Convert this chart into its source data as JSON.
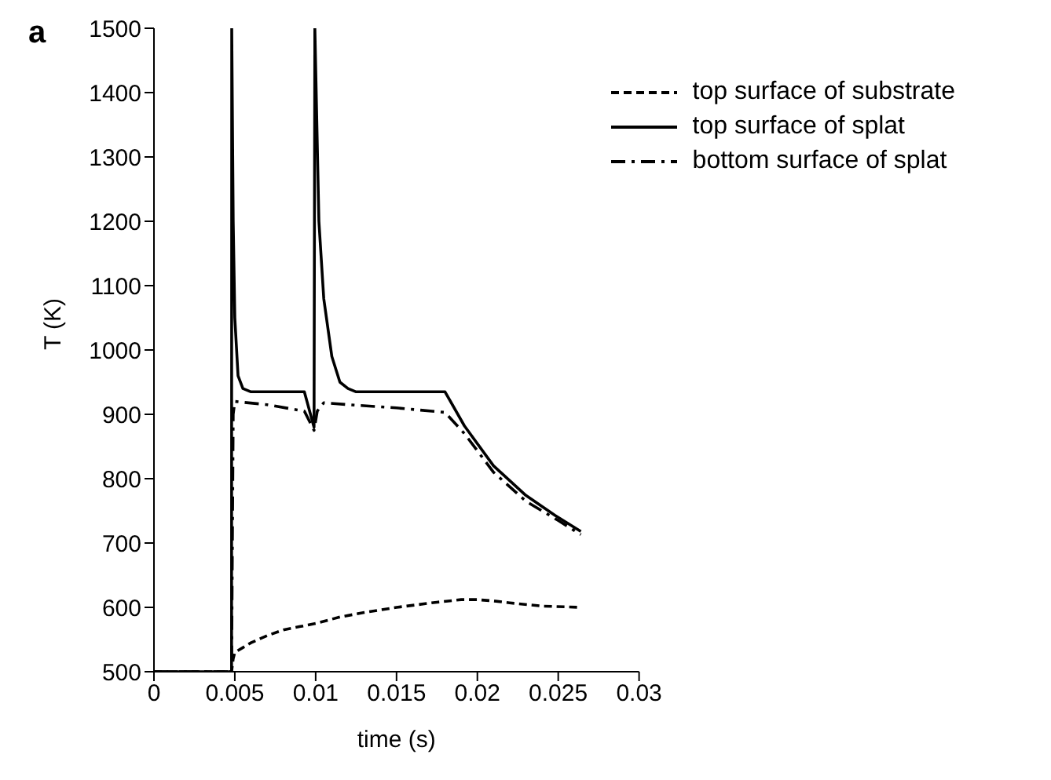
{
  "chart_data": {
    "type": "line",
    "xlabel": "time (s)",
    "ylabel": "T (K)",
    "annotations": [
      "a"
    ],
    "xlim": [
      0,
      0.03
    ],
    "xticks": [
      0,
      0.005,
      0.01,
      0.015,
      0.02,
      0.025,
      0.03
    ],
    "ylim": [
      500,
      1500
    ],
    "yticks": [
      500,
      600,
      700,
      800,
      900,
      1000,
      1100,
      1200,
      1300,
      1400,
      1500
    ],
    "legend": "top right",
    "marker": "none",
    "series": [
      {
        "name": "top surface of substrate",
        "color": "#000000",
        "line_style": "dashed",
        "x": [
          0,
          0.0048,
          0.0049,
          0.005,
          0.006,
          0.007,
          0.008,
          0.009,
          0.01,
          0.0115,
          0.013,
          0.015,
          0.0175,
          0.019,
          0.02,
          0.021,
          0.022,
          0.024,
          0.0264
        ],
        "values": [
          500,
          500,
          520,
          530,
          545,
          556,
          565,
          570,
          575,
          585,
          592,
          600,
          608,
          612,
          612,
          610,
          607,
          602,
          600
        ]
      },
      {
        "name": "top surface of splat",
        "color": "#000000",
        "line_style": "solid",
        "x": [
          0,
          0.0048,
          0.00481,
          0.0049,
          0.005,
          0.0052,
          0.0055,
          0.006,
          0.0093,
          0.0099,
          0.00995,
          0.0102,
          0.0105,
          0.011,
          0.0115,
          0.012,
          0.0125,
          0.018,
          0.0192,
          0.021,
          0.023,
          0.0248,
          0.0264
        ],
        "values": [
          500,
          500,
          1500,
          1200,
          1050,
          960,
          940,
          935,
          935,
          880,
          1500,
          1200,
          1080,
          990,
          950,
          940,
          935,
          935,
          882,
          820,
          774,
          743,
          718
        ]
      },
      {
        "name": "bottom surface of splat",
        "color": "#000000",
        "line_style": "dashdot",
        "x": [
          0,
          0.0048,
          0.00485,
          0.0049,
          0.005,
          0.007,
          0.0093,
          0.0099,
          0.0101,
          0.0105,
          0.012,
          0.015,
          0.018,
          0.0192,
          0.021,
          0.023,
          0.025,
          0.0264
        ],
        "values": [
          500,
          500,
          700,
          900,
          920,
          915,
          905,
          875,
          905,
          918,
          915,
          910,
          903,
          870,
          810,
          765,
          735,
          713
        ]
      }
    ]
  }
}
